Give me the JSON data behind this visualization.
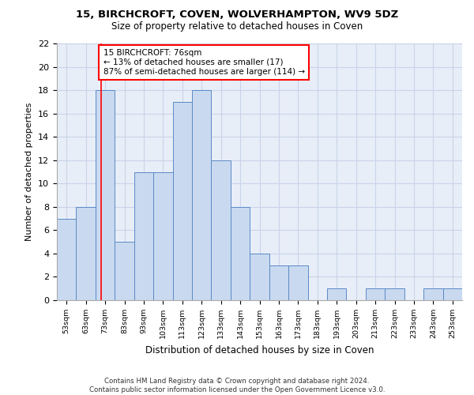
{
  "title1": "15, BIRCHCROFT, COVEN, WOLVERHAMPTON, WV9 5DZ",
  "title2": "Size of property relative to detached houses in Coven",
  "xlabel": "Distribution of detached houses by size in Coven",
  "ylabel": "Number of detached properties",
  "footer": "Contains HM Land Registry data © Crown copyright and database right 2024.\nContains public sector information licensed under the Open Government Licence v3.0.",
  "bin_labels": [
    "53sqm",
    "63sqm",
    "73sqm",
    "83sqm",
    "93sqm",
    "103sqm",
    "113sqm",
    "123sqm",
    "133sqm",
    "143sqm",
    "153sqm",
    "163sqm",
    "173sqm",
    "183sqm",
    "193sqm",
    "203sqm",
    "213sqm",
    "223sqm",
    "233sqm",
    "243sqm",
    "253sqm"
  ],
  "bin_edges": [
    53,
    63,
    73,
    83,
    93,
    103,
    113,
    123,
    133,
    143,
    153,
    163,
    173,
    183,
    193,
    203,
    213,
    223,
    233,
    243,
    253
  ],
  "counts": [
    7,
    8,
    18,
    5,
    11,
    11,
    17,
    18,
    12,
    8,
    4,
    3,
    3,
    0,
    1,
    0,
    1,
    1,
    0,
    1,
    1
  ],
  "bar_color": "#c9d9f0",
  "bar_edge_color": "#5b8ac5",
  "grid_color": "#c8d4e8",
  "background_color": "#e8eef8",
  "annotation_text": "15 BIRCHCROFT: 76sqm\n← 13% of detached houses are smaller (17)\n87% of semi-detached houses are larger (114) →",
  "annotation_box_color": "white",
  "annotation_box_edge_color": "red",
  "vline_x": 76,
  "vline_color": "red",
  "ylim": [
    0,
    22
  ],
  "yticks": [
    0,
    2,
    4,
    6,
    8,
    10,
    12,
    14,
    16,
    18,
    20,
    22
  ]
}
